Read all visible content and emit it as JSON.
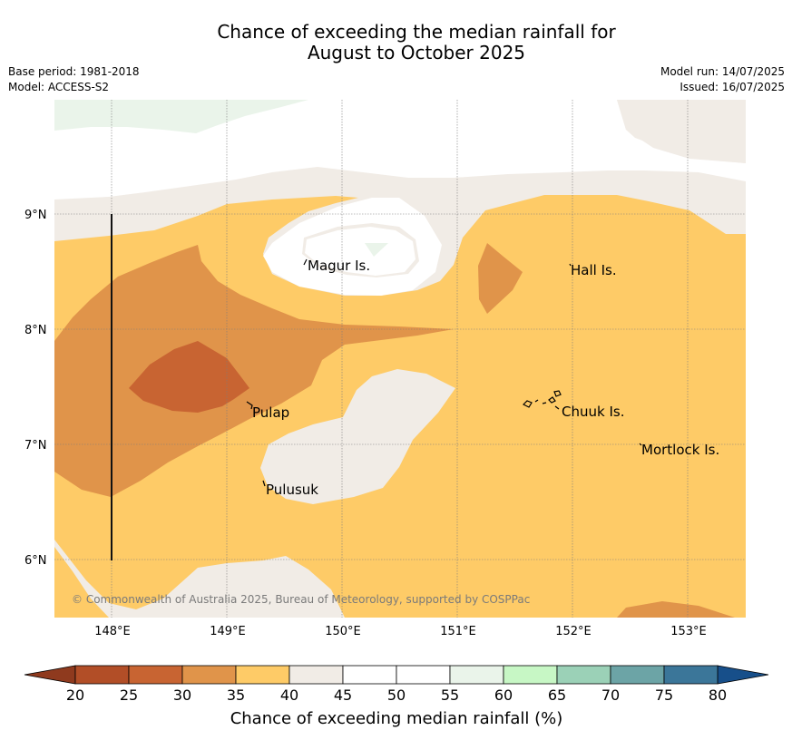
{
  "title": {
    "line1": "Chance of exceeding the median rainfall for",
    "line2": "August to October 2025"
  },
  "meta": {
    "base_period": "Base period: 1981-2018",
    "model": "Model: ACCESS-S2",
    "model_run": "Model run: 14/07/2025",
    "issued": "Issued: 16/07/2025"
  },
  "map": {
    "lat_ticks": [
      "9°N",
      "8°N",
      "7°N",
      "6°N"
    ],
    "lon_ticks": [
      "148°E",
      "149°E",
      "150°E",
      "151°E",
      "152°E",
      "153°E"
    ],
    "places": [
      "Magur Is.",
      "Hall Is.",
      "Pulap",
      "Chuuk Is.",
      "Mortlock Is.",
      "Pulusuk"
    ],
    "copyright": "© Commonwealth of Australia 2025, Bureau of Meteorology, supported by COSPPac"
  },
  "colorbar": {
    "label": "Chance of exceeding median rainfall (%)",
    "ticks": [
      "20",
      "25",
      "30",
      "35",
      "40",
      "45",
      "50",
      "55",
      "60",
      "65",
      "70",
      "75",
      "80"
    ],
    "under_color": "#8f3a1e",
    "over_color": "#174f8a",
    "colors": [
      "#b24e27",
      "#c86432",
      "#e0944a",
      "#fecb67",
      "#f1ece6",
      "#ffffff",
      "#ffffff",
      "#eaf4ea",
      "#c7f7c5",
      "#9bd1b7",
      "#6ca4a6",
      "#3b7699"
    ]
  },
  "legend_colors": {
    "c20_25": "#b24e27",
    "c25_30": "#c86432",
    "c30_35": "#e0944a",
    "c35_40": "#fecb67",
    "c40_45": "#f1ece6",
    "c45_55": "#ffffff",
    "c55_60": "#eaf4ea"
  }
}
